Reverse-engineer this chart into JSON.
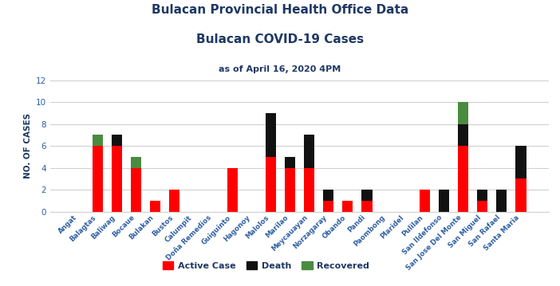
{
  "title1": "Bulacan Provincial Health Office Data",
  "title2": "Bulacan COVID-19 Cases",
  "title3": "as of April 16, 2020 4PM",
  "ylabel": "NO. OF CASES",
  "categories": [
    "Angat",
    "Balagtas",
    "Baliwag",
    "Bocaue",
    "Bulakan",
    "Bustos",
    "Calumpit",
    "Doña Remedios",
    "Guiguinto",
    "Hagonoy",
    "Malolos",
    "Marilao",
    "Meycauayan",
    "Norzagaray",
    "Obando",
    "Pandi",
    "Paombong",
    "Plaridel",
    "Pulilan",
    "San Ildefonso",
    "San Jose Del Monte",
    "San Miguel",
    "San Rafael",
    "Santa Maria"
  ],
  "active": [
    0,
    6,
    6,
    4,
    1,
    2,
    0,
    0,
    4,
    0,
    5,
    4,
    4,
    1,
    1,
    1,
    0,
    0,
    2,
    0,
    6,
    1,
    0,
    3
  ],
  "death": [
    0,
    0,
    1,
    0,
    0,
    0,
    0,
    0,
    0,
    0,
    4,
    1,
    3,
    1,
    0,
    1,
    0,
    0,
    0,
    2,
    2,
    1,
    2,
    3
  ],
  "recovered": [
    0,
    1,
    0,
    1,
    0,
    0,
    0,
    0,
    0,
    0,
    0,
    0,
    0,
    0,
    0,
    0,
    0,
    0,
    0,
    0,
    2,
    0,
    0,
    0
  ],
  "active_color": "#ff0000",
  "death_color": "#111111",
  "recovered_color": "#4a8c3f",
  "ylim": [
    0,
    12
  ],
  "yticks": [
    0,
    2,
    4,
    6,
    8,
    10,
    12
  ],
  "title_color": "#1f3864",
  "axis_label_color": "#1f3864",
  "tick_color": "#2e5fa3",
  "bg_color": "#ffffff",
  "grid_color": "#d0d0d0",
  "bar_width": 0.55
}
